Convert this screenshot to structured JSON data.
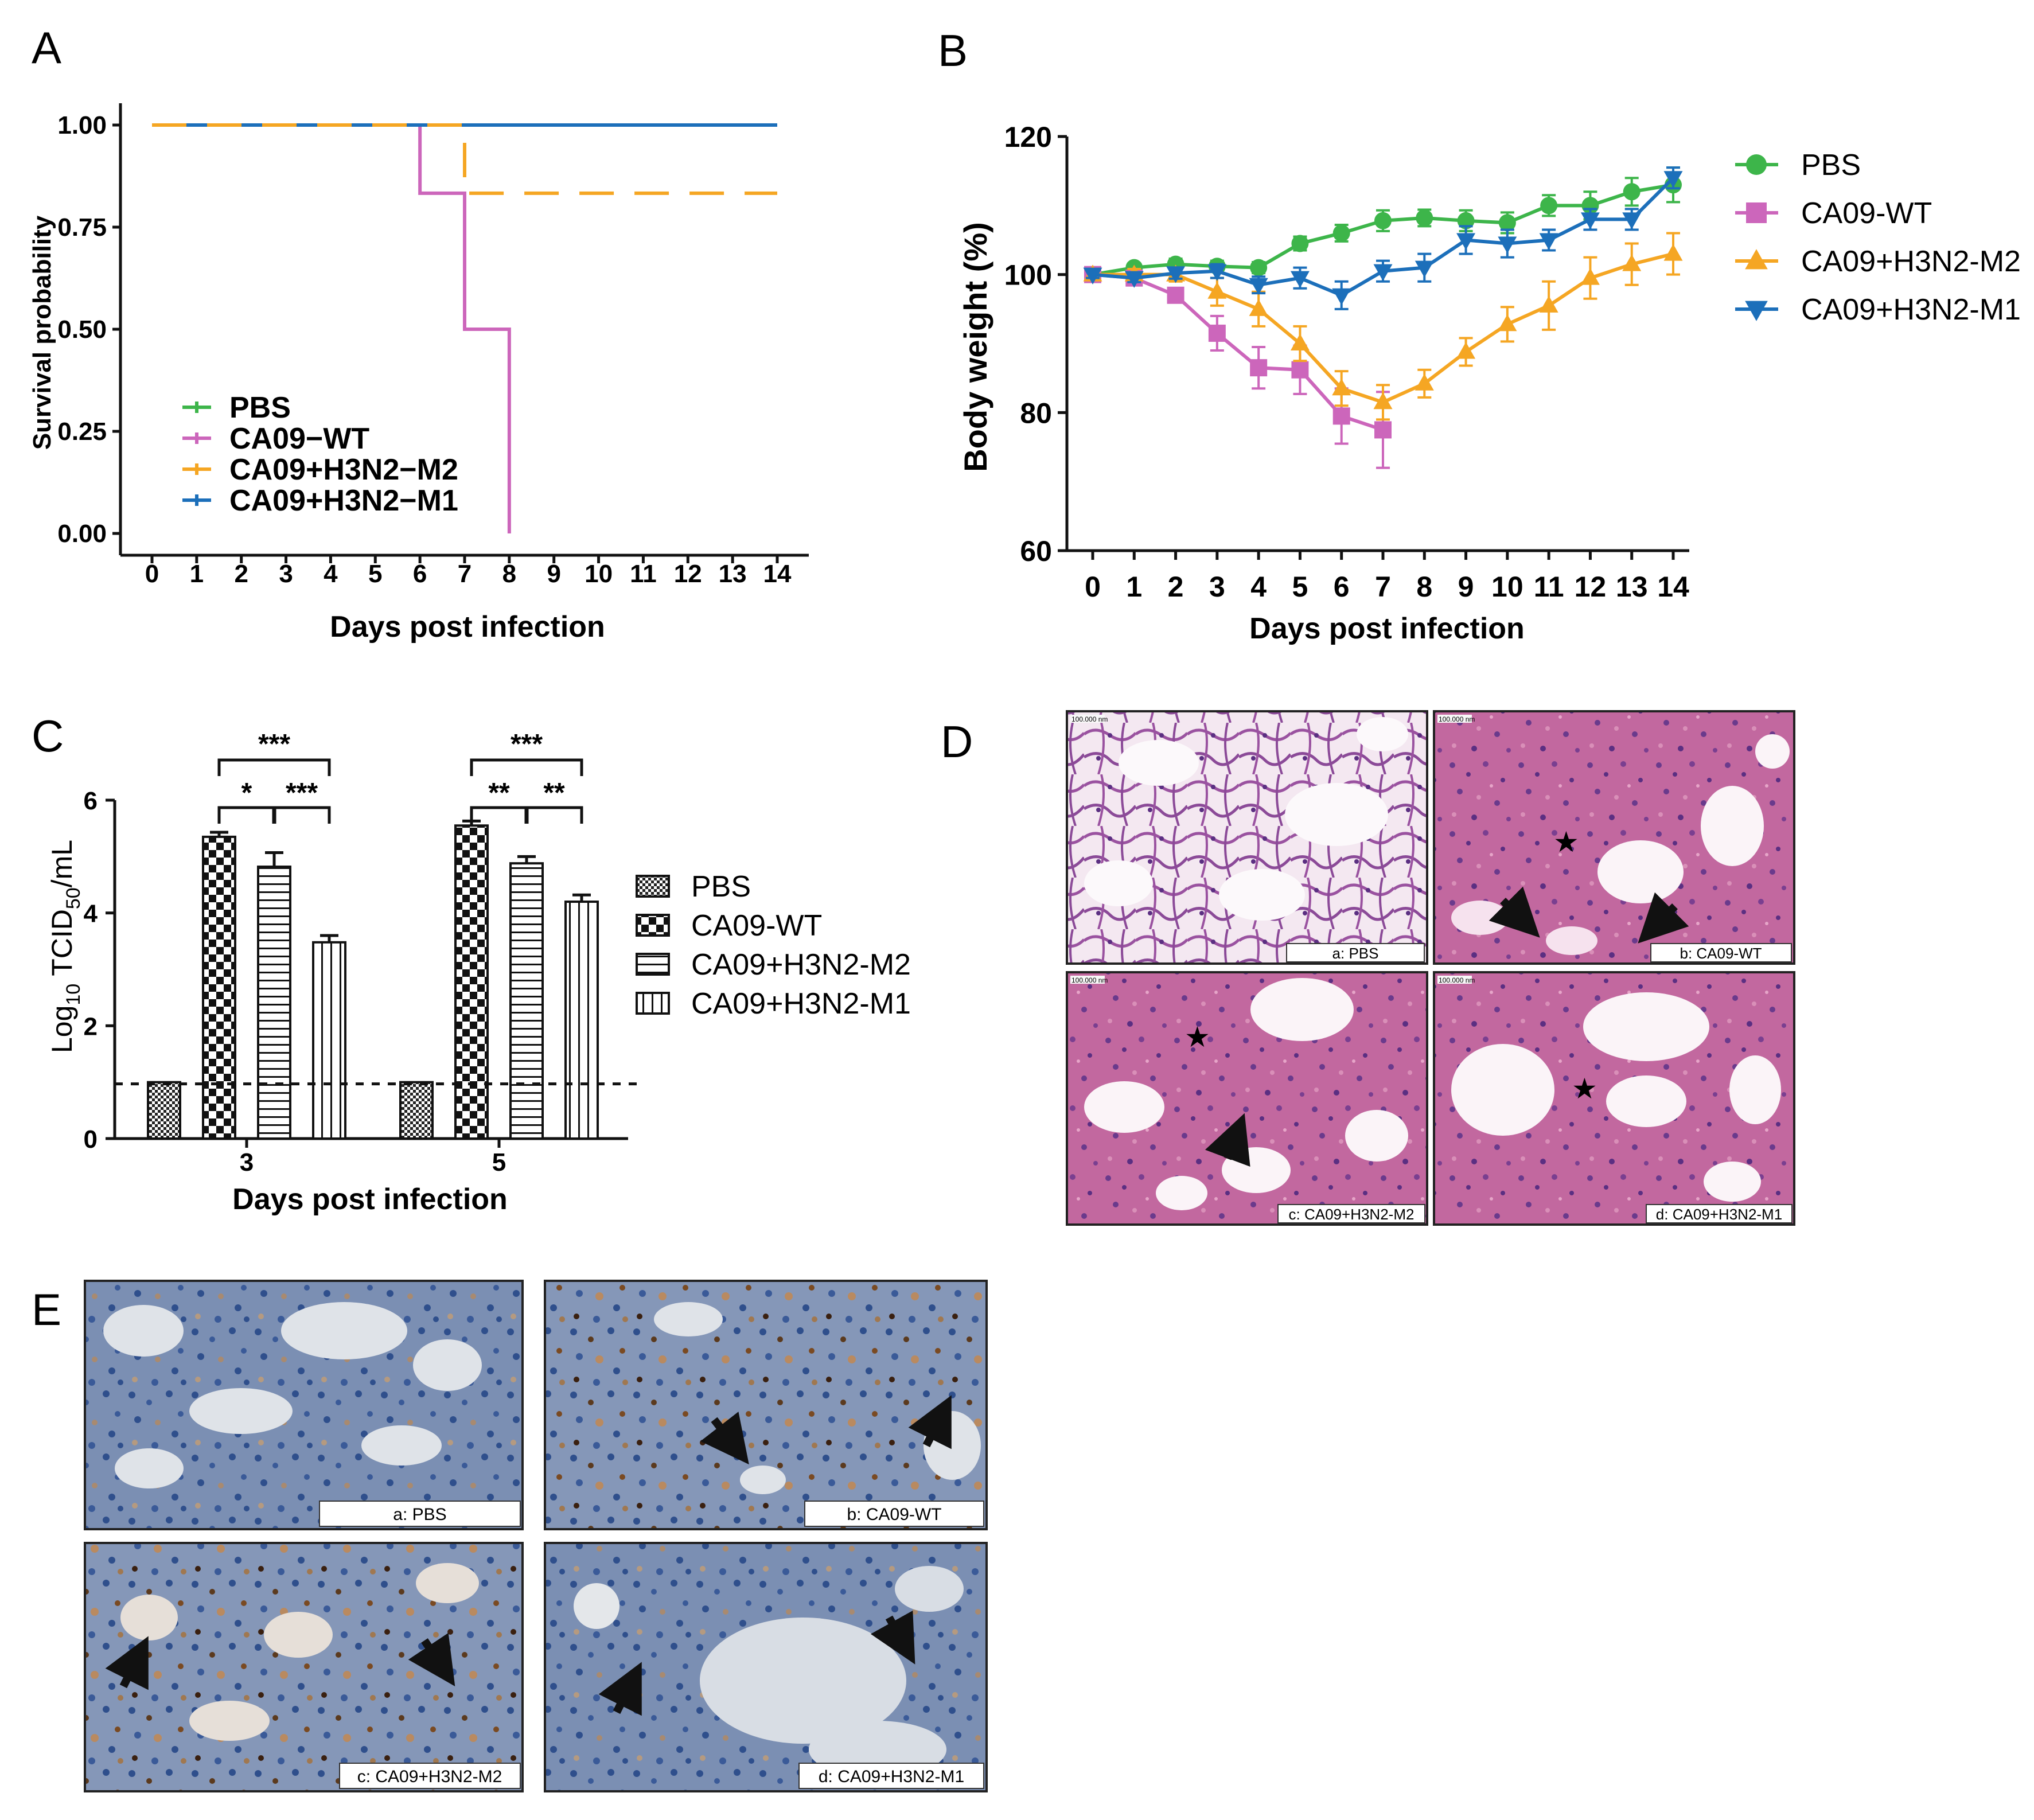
{
  "panels": {
    "A": "A",
    "B": "B",
    "C": "C",
    "D": "D",
    "E": "E"
  },
  "chart_data": [
    {
      "panel": "A",
      "type": "line",
      "style": "step",
      "xlabel": "Days post infection",
      "ylabel": "Survival probability",
      "xticks": [
        "0",
        "1",
        "2",
        "3",
        "4",
        "5",
        "6",
        "7",
        "8",
        "9",
        "10",
        "11",
        "12",
        "13",
        "14"
      ],
      "yticks": [
        "0.00",
        "0.25",
        "0.50",
        "0.75",
        "1.00"
      ],
      "xlim": [
        0,
        14
      ],
      "ylim": [
        0,
        1
      ],
      "legend_position": "bottom-left",
      "series": [
        {
          "name": "PBS",
          "color": "#3db54a",
          "x": [
            0,
            14
          ],
          "y": [
            1,
            1
          ]
        },
        {
          "name": "CA09−WT",
          "color": "#cc66bb",
          "x": [
            0,
            6,
            6,
            7,
            7,
            8,
            8
          ],
          "y": [
            1,
            1,
            0.833,
            0.833,
            0.5,
            0.5,
            0
          ]
        },
        {
          "name": "CA09+H3N2−M2",
          "color": "#f5a623",
          "dash": true,
          "x": [
            0,
            7,
            7,
            14
          ],
          "y": [
            1,
            1,
            0.833,
            0.833
          ]
        },
        {
          "name": "CA09+H3N2−M1",
          "color": "#1c6fba",
          "x": [
            0,
            14
          ],
          "y": [
            1,
            1
          ]
        }
      ]
    },
    {
      "panel": "B",
      "type": "line",
      "xlabel": "Days post infection",
      "ylabel": "Body weight (%)",
      "x": [
        0,
        1,
        2,
        3,
        4,
        5,
        6,
        7,
        8,
        9,
        10,
        11,
        12,
        13,
        14
      ],
      "xticks": [
        "0",
        "1",
        "2",
        "3",
        "4",
        "5",
        "6",
        "7",
        "8",
        "9",
        "10",
        "11",
        "12",
        "13",
        "14"
      ],
      "yticks": [
        "60",
        "80",
        "100",
        "120"
      ],
      "xlim": [
        0,
        14
      ],
      "ylim": [
        60,
        120
      ],
      "legend_position": "right",
      "series": [
        {
          "name": "PBS",
          "color": "#3db54a",
          "marker": "circle",
          "x": [
            0,
            1,
            2,
            3,
            4,
            5,
            6,
            7,
            8,
            9,
            10,
            11,
            12,
            13,
            14
          ],
          "values": [
            100,
            101,
            101.5,
            101.2,
            101,
            104.5,
            106,
            107.8,
            108.2,
            107.8,
            107.5,
            110,
            110,
            112,
            113
          ],
          "err": [
            0.6,
            0.6,
            0.8,
            0.8,
            0.8,
            1,
            1.2,
            1.5,
            1.2,
            1.5,
            1.5,
            1.5,
            2,
            2,
            2.5
          ]
        },
        {
          "name": "CA09-WT",
          "color": "#cc66bb",
          "marker": "square",
          "x": [
            0,
            1,
            2,
            3,
            4,
            5,
            6,
            7
          ],
          "values": [
            100,
            99.5,
            97,
            91.5,
            86.5,
            86.2,
            79.5,
            77.5
          ],
          "err": [
            0.6,
            0.8,
            1,
            2.5,
            3,
            3.5,
            4,
            5.5
          ]
        },
        {
          "name": "CA09+H3N2-M2",
          "color": "#f5a623",
          "marker": "triangle-up",
          "x": [
            0,
            1,
            2,
            3,
            4,
            5,
            6,
            7,
            8,
            9,
            10,
            11,
            12,
            13,
            14
          ],
          "values": [
            100,
            100,
            100,
            97.5,
            95,
            90,
            83.5,
            81.5,
            84.2,
            88.8,
            92.8,
            95.5,
            99.5,
            101.5,
            103
          ],
          "err": [
            0.6,
            0.8,
            1,
            2,
            2.5,
            2.5,
            2.5,
            2.5,
            2,
            2,
            2.5,
            3.5,
            3,
            3,
            3
          ]
        },
        {
          "name": "CA09+H3N2-M1",
          "color": "#1c6fba",
          "marker": "triangle-down",
          "x": [
            0,
            1,
            2,
            3,
            4,
            5,
            6,
            7,
            8,
            9,
            10,
            11,
            12,
            13,
            14
          ],
          "values": [
            100,
            99.5,
            100.2,
            100.5,
            98.5,
            99.5,
            97,
            100.5,
            101,
            105,
            104.5,
            105,
            108,
            108,
            114
          ],
          "err": [
            0.5,
            0.6,
            0.8,
            1,
            1.2,
            1.5,
            2,
            1.5,
            2,
            2,
            2,
            1.5,
            1.5,
            1.5,
            1.5
          ]
        }
      ]
    },
    {
      "panel": "C",
      "type": "bar",
      "xlabel": "Days post infection",
      "ylabel_main": "Log",
      "ylabel_sub": "10",
      "ylabel_mid": " TCID",
      "ylabel_sub2": "50",
      "ylabel_end": "/mL",
      "categories": [
        "3",
        "5"
      ],
      "yticks": [
        "0",
        "2",
        "4",
        "6"
      ],
      "ylim": [
        0,
        6
      ],
      "detection_limit": 0.97,
      "legend_position": "right",
      "series": [
        {
          "name": "PBS",
          "pattern": "fine",
          "values": [
            1.0,
            1.0
          ],
          "err": [
            0,
            0
          ]
        },
        {
          "name": "CA09-WT",
          "pattern": "checker",
          "values": [
            5.35,
            5.55
          ],
          "err": [
            0.08,
            0.08
          ]
        },
        {
          "name": "CA09+H3N2-M2",
          "pattern": "horizontal",
          "values": [
            4.82,
            4.88
          ],
          "err": [
            0.25,
            0.12
          ]
        },
        {
          "name": "CA09+H3N2-M1",
          "pattern": "vertical",
          "values": [
            3.48,
            4.2
          ],
          "err": [
            0.12,
            0.12
          ]
        }
      ],
      "significance": [
        {
          "category": "3",
          "top": "***",
          "left": "*",
          "right": "***"
        },
        {
          "category": "5",
          "top": "***",
          "left": "**",
          "right": "**"
        }
      ]
    }
  ],
  "micrographs_D": [
    {
      "label": "a: PBS",
      "scale": "100.000 nm"
    },
    {
      "label": "b: CA09-WT",
      "scale": "100.000 nm"
    },
    {
      "label": "c: CA09+H3N2-M2",
      "scale": "100.000 nm"
    },
    {
      "label": "d: CA09+H3N2-M1",
      "scale": "100.000 nm"
    }
  ],
  "micrographs_E": [
    {
      "label": "a: PBS"
    },
    {
      "label": "b: CA09-WT"
    },
    {
      "label": "c: CA09+H3N2-M2"
    },
    {
      "label": "d: CA09+H3N2-M1"
    }
  ],
  "colors": {
    "he_bg": "#f1dbe9",
    "he_tissue": "#b85a95",
    "ihc_bg": "#dde3ea",
    "ihc_tissue": "#4f6fa5"
  }
}
